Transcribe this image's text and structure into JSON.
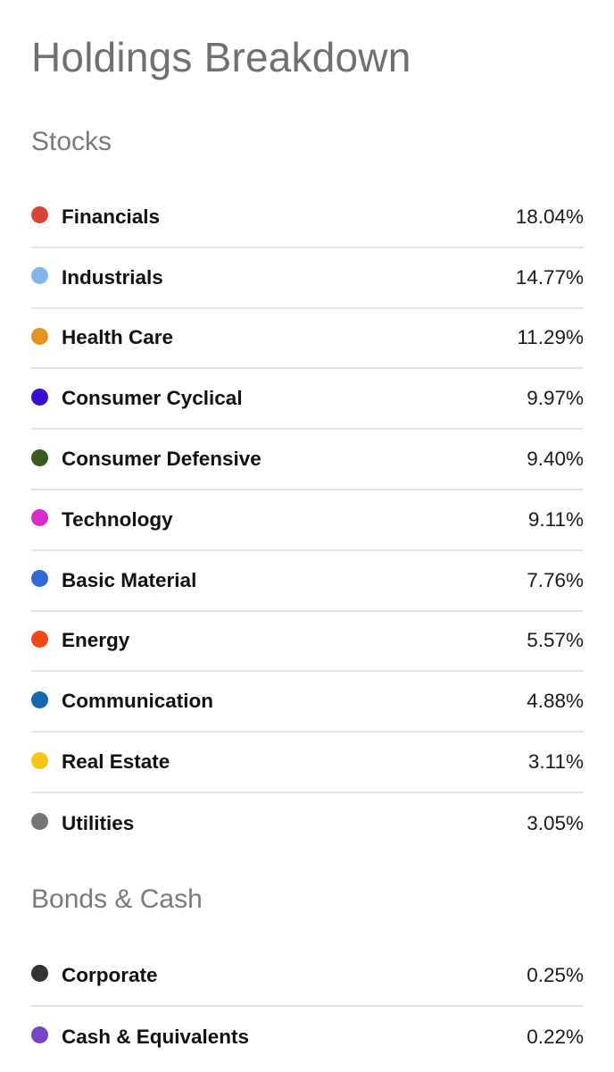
{
  "title": "Holdings Breakdown",
  "sections": [
    {
      "title": "Stocks",
      "items": [
        {
          "label": "Financials",
          "value": "18.04%",
          "color": "#d94537"
        },
        {
          "label": "Industrials",
          "value": "14.77%",
          "color": "#82b6ea"
        },
        {
          "label": "Health Care",
          "value": "11.29%",
          "color": "#e2951c"
        },
        {
          "label": "Consumer Cyclical",
          "value": "9.97%",
          "color": "#3a0fd1"
        },
        {
          "label": "Consumer Defensive",
          "value": "9.40%",
          "color": "#3a5a1e"
        },
        {
          "label": "Technology",
          "value": "9.11%",
          "color": "#d72ec9"
        },
        {
          "label": "Basic Material",
          "value": "7.76%",
          "color": "#2f66d8"
        },
        {
          "label": "Energy",
          "value": "5.57%",
          "color": "#f0461a"
        },
        {
          "label": "Communication",
          "value": "4.88%",
          "color": "#1468b0"
        },
        {
          "label": "Real Estate",
          "value": "3.11%",
          "color": "#f8c51b"
        },
        {
          "label": "Utilities",
          "value": "3.05%",
          "color": "#757575"
        }
      ]
    },
    {
      "title": "Bonds & Cash",
      "items": [
        {
          "label": "Corporate",
          "value": "0.25%",
          "color": "#333333"
        },
        {
          "label": "Cash & Equivalents",
          "value": "0.22%",
          "color": "#7a45c4"
        }
      ]
    }
  ]
}
